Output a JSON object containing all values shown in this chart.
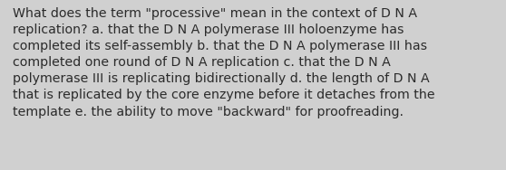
{
  "background_color": "#d0d0d0",
  "text_color": "#2b2b2b",
  "font_size": 10.2,
  "text": "What does the term \"processive\" mean in the context of D N A\nreplication? a. that the D N A polymerase III holoenzyme has\ncompleted its self-assembly b. that the D N A polymerase III has\ncompleted one round of D N A replication c. that the D N A\npolymerase III is replicating bidirectionally d. the length of D N A\nthat is replicated by the core enzyme before it detaches from the\ntemplate e. the ability to move \"backward\" for proofreading.",
  "fig_width": 5.58,
  "fig_height": 1.88,
  "dpi": 100
}
